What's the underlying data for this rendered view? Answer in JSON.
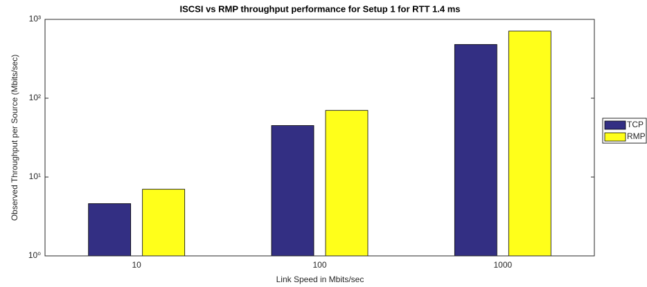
{
  "chart_data": {
    "type": "bar",
    "title": "ISCSI vs RMP throughput  performance for Setup 1 for RTT 1.4 ms",
    "x_label": "Link Speed in Mbits/sec",
    "y_label": "Observed Throughput per Source (Mbits/sec)",
    "categories": [
      "10",
      "100",
      "1000"
    ],
    "series": [
      {
        "name": "TCP",
        "color": "#332f83",
        "values": [
          4.6,
          45,
          480
        ]
      },
      {
        "name": "RMP",
        "color": "#ffff1a",
        "values": [
          7,
          70,
          710
        ]
      }
    ],
    "ylim": [
      1,
      1000
    ],
    "yticks": [
      {
        "value": 1,
        "label": "10⁰"
      },
      {
        "value": 10,
        "label": "10¹"
      },
      {
        "value": 100,
        "label": "10²"
      },
      {
        "value": 1000,
        "label": "10³"
      }
    ],
    "y_scale": "log",
    "grid": false,
    "legend": "outside right"
  }
}
